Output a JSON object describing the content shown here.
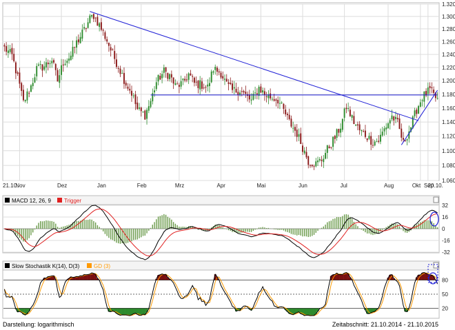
{
  "colors": {
    "grid": "#dcdcdc",
    "up_candle": "#2e8b2e",
    "down_candle": "#8b1a1a",
    "trendline": "#1f1fd6",
    "macd": "#000000",
    "trigger": "#e02020",
    "histogram": "#6a9a4a",
    "stoch_k": "#000000",
    "stoch_d": "#ff9900",
    "overbought_fill": "#7a1010",
    "oversold_fill": "#2d8a2d",
    "marker": "#1f1fd6"
  },
  "footer": {
    "left": "Darstellung: logarithmisch",
    "right": "Zeitabschnitt: 21.10.2014 - 21.10.2015"
  },
  "chart_data": [
    {
      "type": "candlestick",
      "scale": "log",
      "ylim": [
        1.06,
        1.32
      ],
      "y_ticks": [
        "1.060",
        "1.080",
        "1.100",
        "1.120",
        "1.140",
        "1.160",
        "1.180",
        "1.200",
        "1.220",
        "1.240",
        "1.260",
        "1.280",
        "1.300",
        "1.320"
      ],
      "x_ticks": [
        "21.10.",
        "Nov",
        "Dez",
        "Jan",
        "Feb",
        "Mrz",
        "Apr",
        "Mai",
        "Jun",
        "Jul",
        "Aug",
        "Sep",
        "Okt",
        "20.10."
      ],
      "anchors": [
        [
          0,
          1.25
        ],
        [
          4,
          1.238
        ],
        [
          7,
          1.205
        ],
        [
          10,
          1.168
        ],
        [
          14,
          1.192
        ],
        [
          17,
          1.218
        ],
        [
          21,
          1.222
        ],
        [
          25,
          1.232
        ],
        [
          28,
          1.2
        ],
        [
          31,
          1.228
        ],
        [
          35,
          1.238
        ],
        [
          38,
          1.258
        ],
        [
          42,
          1.278
        ],
        [
          45,
          1.296
        ],
        [
          47,
          1.302
        ],
        [
          50,
          1.286
        ],
        [
          54,
          1.262
        ],
        [
          57,
          1.24
        ],
        [
          60,
          1.222
        ],
        [
          64,
          1.196
        ],
        [
          67,
          1.182
        ],
        [
          70,
          1.158
        ],
        [
          74,
          1.15
        ],
        [
          77,
          1.17
        ],
        [
          80,
          1.198
        ],
        [
          84,
          1.214
        ],
        [
          87,
          1.208
        ],
        [
          90,
          1.192
        ],
        [
          94,
          1.196
        ],
        [
          97,
          1.21
        ],
        [
          100,
          1.196
        ],
        [
          104,
          1.194
        ],
        [
          107,
          1.19
        ],
        [
          110,
          1.218
        ],
        [
          114,
          1.212
        ],
        [
          117,
          1.194
        ],
        [
          120,
          1.185
        ],
        [
          124,
          1.186
        ],
        [
          127,
          1.178
        ],
        [
          130,
          1.17
        ],
        [
          134,
          1.19
        ],
        [
          137,
          1.18
        ],
        [
          140,
          1.176
        ],
        [
          144,
          1.172
        ],
        [
          147,
          1.156
        ],
        [
          150,
          1.14
        ],
        [
          154,
          1.124
        ],
        [
          157,
          1.105
        ],
        [
          160,
          1.086
        ],
        [
          164,
          1.082
        ],
        [
          167,
          1.088
        ],
        [
          170,
          1.102
        ],
        [
          174,
          1.118
        ],
        [
          177,
          1.134
        ],
        [
          180,
          1.162
        ],
        [
          184,
          1.14
        ],
        [
          187,
          1.128
        ],
        [
          190,
          1.122
        ],
        [
          194,
          1.112
        ],
        [
          197,
          1.114
        ],
        [
          200,
          1.13
        ],
        [
          204,
          1.148
        ],
        [
          207,
          1.138
        ],
        [
          210,
          1.11
        ],
        [
          214,
          1.134
        ],
        [
          217,
          1.158
        ],
        [
          220,
          1.176
        ],
        [
          224,
          1.186
        ],
        [
          226,
          1.178
        ],
        [
          228,
          1.172
        ]
      ],
      "trendlines": [
        {
          "from": [
            45,
            1.308
          ],
          "to": [
            218,
            1.142
          ]
        },
        {
          "from": [
            77,
            1.179
          ],
          "to": [
            228,
            1.179
          ]
        },
        {
          "from": [
            209,
            1.108
          ],
          "to": [
            228,
            1.186
          ]
        }
      ]
    },
    {
      "type": "line",
      "series": [
        {
          "name": "MACD 12, 26, 9"
        },
        {
          "name": "Trigger"
        }
      ],
      "ylim": [
        -32,
        32
      ],
      "y_ticks": [
        32,
        16,
        0,
        -16,
        -32
      ]
    },
    {
      "type": "line",
      "series": [
        {
          "name": "Slow Stochastik K(14), D(3)"
        },
        {
          "name": "GD (3)"
        }
      ],
      "ylim": [
        0,
        100
      ],
      "y_ticks": [
        80,
        50,
        20
      ],
      "levels": [
        80,
        50,
        20
      ]
    }
  ]
}
